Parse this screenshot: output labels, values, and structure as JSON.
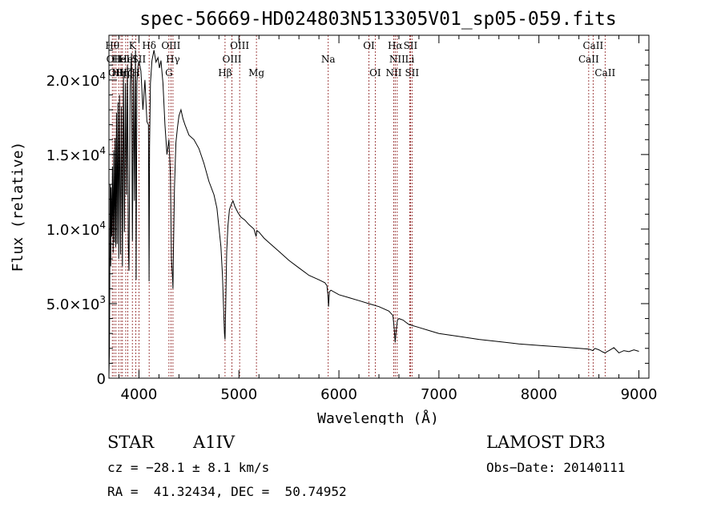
{
  "chart_data": {
    "type": "line",
    "title": "spec-56669-HD024803N513305V01_sp05-059.fits",
    "xlabel": "Wavelength (Å)",
    "ylabel": "Flux (relative)",
    "xlim": [
      3700,
      9100
    ],
    "ylim": [
      0,
      23000
    ],
    "xticks": [
      4000,
      5000,
      6000,
      7000,
      8000,
      9000
    ],
    "yticks": [
      {
        "value": 0,
        "label": "0"
      },
      {
        "value": 5000,
        "label": "5.0×10",
        "exp": "3"
      },
      {
        "value": 10000,
        "label": "1.0×10",
        "exp": "4"
      },
      {
        "value": 15000,
        "label": "1.5×10",
        "exp": "4"
      },
      {
        "value": 20000,
        "label": "2.0×10",
        "exp": "4"
      }
    ],
    "series": [
      {
        "name": "flux",
        "x": [
          3700,
          3705,
          3712,
          3718,
          3722,
          3728,
          3735,
          3742,
          3748,
          3755,
          3762,
          3768,
          3775,
          3782,
          3790,
          3798,
          3805,
          3815,
          3825,
          3835,
          3845,
          3855,
          3865,
          3875,
          3885,
          3893,
          3900,
          3912,
          3925,
          3935,
          3945,
          3955,
          3965,
          3972,
          3980,
          3990,
          4000,
          4020,
          4040,
          4060,
          4080,
          4095,
          4101,
          4106,
          4115,
          4130,
          4150,
          4170,
          4190,
          4205,
          4220,
          4240,
          4260,
          4280,
          4300,
          4315,
          4325,
          4335,
          4340,
          4345,
          4355,
          4370,
          4385,
          4400,
          4420,
          4440,
          4460,
          4500,
          4550,
          4600,
          4650,
          4700,
          4750,
          4780,
          4800,
          4820,
          4835,
          4845,
          4855,
          4861,
          4868,
          4878,
          4890,
          4905,
          4920,
          4940,
          4960,
          4990,
          5020,
          5060,
          5100,
          5150,
          5172,
          5180,
          5200,
          5250,
          5300,
          5400,
          5500,
          5600,
          5700,
          5800,
          5860,
          5880,
          5890,
          5896,
          5905,
          5920,
          6000,
          6100,
          6200,
          6300,
          6400,
          6500,
          6540,
          6555,
          6563,
          6570,
          6585,
          6600,
          6640,
          6700,
          6800,
          6900,
          7000,
          7200,
          7400,
          7600,
          7800,
          8000,
          8200,
          8400,
          8500,
          8540,
          8560,
          8600,
          8640,
          8660,
          8700,
          8750,
          8800,
          8850,
          8900,
          8950,
          9000
        ],
        "y": [
          200,
          1800,
          13000,
          7500,
          12800,
          9500,
          14200,
          8400,
          15300,
          9100,
          16100,
          8800,
          17800,
          9000,
          18500,
          8000,
          19000,
          8300,
          18200,
          7500,
          20500,
          9800,
          19800,
          12300,
          21000,
          9100,
          7200,
          19600,
          21800,
          9200,
          20700,
          11900,
          22000,
          6600,
          19800,
          20900,
          21300,
          20600,
          18000,
          20000,
          17200,
          17000,
          6500,
          15500,
          19800,
          21300,
          22000,
          21200,
          21500,
          20800,
          21300,
          19800,
          17000,
          15000,
          16000,
          13500,
          8000,
          6800,
          6000,
          8500,
          12800,
          15800,
          16800,
          17600,
          18000,
          17400,
          17000,
          16300,
          16000,
          15400,
          14400,
          13200,
          12300,
          11400,
          10100,
          8800,
          6900,
          5000,
          3000,
          2600,
          5000,
          8500,
          10200,
          11300,
          11600,
          11900,
          11500,
          11100,
          10800,
          10600,
          10300,
          10000,
          9500,
          9900,
          9800,
          9400,
          9100,
          8500,
          7900,
          7400,
          6900,
          6600,
          6400,
          6200,
          5600,
          4800,
          5800,
          5900,
          5600,
          5400,
          5200,
          5000,
          4800,
          4500,
          4200,
          3200,
          2400,
          3000,
          3900,
          4000,
          3900,
          3600,
          3400,
          3200,
          3000,
          2800,
          2600,
          2450,
          2300,
          2200,
          2100,
          2000,
          1950,
          1850,
          2000,
          1900,
          1750,
          1700,
          1850,
          2050,
          1700,
          1850,
          1780,
          1900,
          1800
        ]
      }
    ],
    "lines": [
      {
        "wl": 3734,
        "label": "Hθ",
        "row": 1
      },
      {
        "wl": 3750,
        "label": "OII",
        "row": 2
      },
      {
        "wl": 3770,
        "label": "OII",
        "row": 3
      },
      {
        "wl": 3798,
        "label": "Hη",
        "row": 3
      },
      {
        "wl": 3820,
        "label": "HeI",
        "row": 2
      },
      {
        "wl": 3835,
        "label": "Hη",
        "row": 3
      },
      {
        "wl": 3868,
        "label": "Hζ",
        "row": 3
      },
      {
        "wl": 3889,
        "label": "HeI",
        "row": 2
      },
      {
        "wl": 3934,
        "label": "K",
        "row": 1
      },
      {
        "wl": 3968,
        "label": "H",
        "row": 3
      },
      {
        "wl": 4000,
        "label": "SII",
        "row": 2
      },
      {
        "wl": 4102,
        "label": "Hδ",
        "row": 1
      },
      {
        "wl": 4300,
        "label": "G",
        "row": 3
      },
      {
        "wl": 4320,
        "label": "OIII",
        "row": 1
      },
      {
        "wl": 4340,
        "label": "Hγ",
        "row": 2
      },
      {
        "wl": 4861,
        "label": "Hβ",
        "row": 3
      },
      {
        "wl": 4930,
        "label": "OIII",
        "row": 2
      },
      {
        "wl": 5007,
        "label": "OIII",
        "row": 1
      },
      {
        "wl": 5175,
        "label": "Mg",
        "row": 3
      },
      {
        "wl": 5893,
        "label": "Na",
        "row": 2
      },
      {
        "wl": 6300,
        "label": "OI",
        "row": 1
      },
      {
        "wl": 6363,
        "label": "OI",
        "row": 3
      },
      {
        "wl": 6548,
        "label": "NII",
        "row": 3
      },
      {
        "wl": 6563,
        "label": "Hα",
        "row": 1
      },
      {
        "wl": 6583,
        "label": "NII",
        "row": 2
      },
      {
        "wl": 6708,
        "label": "Li",
        "row": 2
      },
      {
        "wl": 6716,
        "label": "SII",
        "row": 1
      },
      {
        "wl": 6731,
        "label": "SII",
        "row": 3
      },
      {
        "wl": 8498,
        "label": "CaII",
        "row": 2
      },
      {
        "wl": 8542,
        "label": "CaII",
        "row": 1
      },
      {
        "wl": 8662,
        "label": "CaII",
        "row": 3
      }
    ]
  },
  "info": {
    "object_type": "STAR",
    "subclass": "A1IV",
    "survey": "LAMOST DR3",
    "cz": "cz = −28.1 ± 8.1 km/s",
    "obs_date": "Obs−Date: 20140111",
    "coords": "RA =  41.32434, DEC =  50.74952"
  },
  "colors": {
    "spectrum": "#000000",
    "line_markers": "#8b1a1a"
  }
}
